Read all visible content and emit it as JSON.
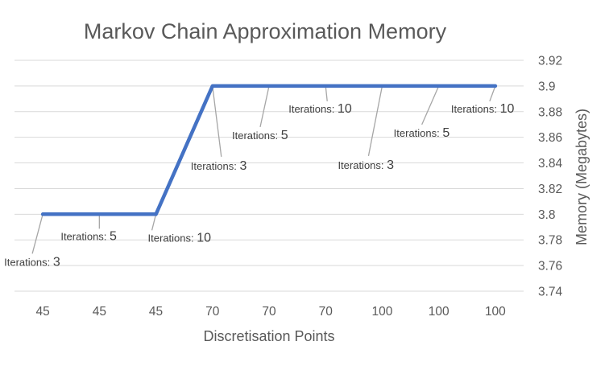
{
  "chart_data": {
    "type": "line",
    "title": "Markov Chain Approximation Memory",
    "xlabel": "Discretisation Points",
    "ylabel": "Memory (Megabytes)",
    "y_axis_side": "right",
    "categories": [
      "45",
      "45",
      "45",
      "70",
      "70",
      "70",
      "100",
      "100",
      "100"
    ],
    "values": [
      3.8,
      3.8,
      3.8,
      3.9,
      3.9,
      3.9,
      3.9,
      3.9,
      3.9
    ],
    "data_labels": [
      {
        "prefix": "Iterations: ",
        "value": "3"
      },
      {
        "prefix": "Iterations: ",
        "value": "5"
      },
      {
        "prefix": "Iterations: ",
        "value": "10"
      },
      {
        "prefix": "Iterations: ",
        "value": "3"
      },
      {
        "prefix": "Iterations: ",
        "value": "5"
      },
      {
        "prefix": "Iterations: ",
        "value": "10"
      },
      {
        "prefix": "Iterations: ",
        "value": "3"
      },
      {
        "prefix": "Iterations: ",
        "value": "5"
      },
      {
        "prefix": "Iterations: ",
        "value": "10"
      }
    ],
    "ylim": [
      3.74,
      3.92
    ],
    "yticks": [
      "3.74",
      "3.76",
      "3.78",
      "3.8",
      "3.82",
      "3.84",
      "3.86",
      "3.88",
      "3.9",
      "3.92"
    ],
    "grid": true,
    "line_color": "#4472c4"
  }
}
